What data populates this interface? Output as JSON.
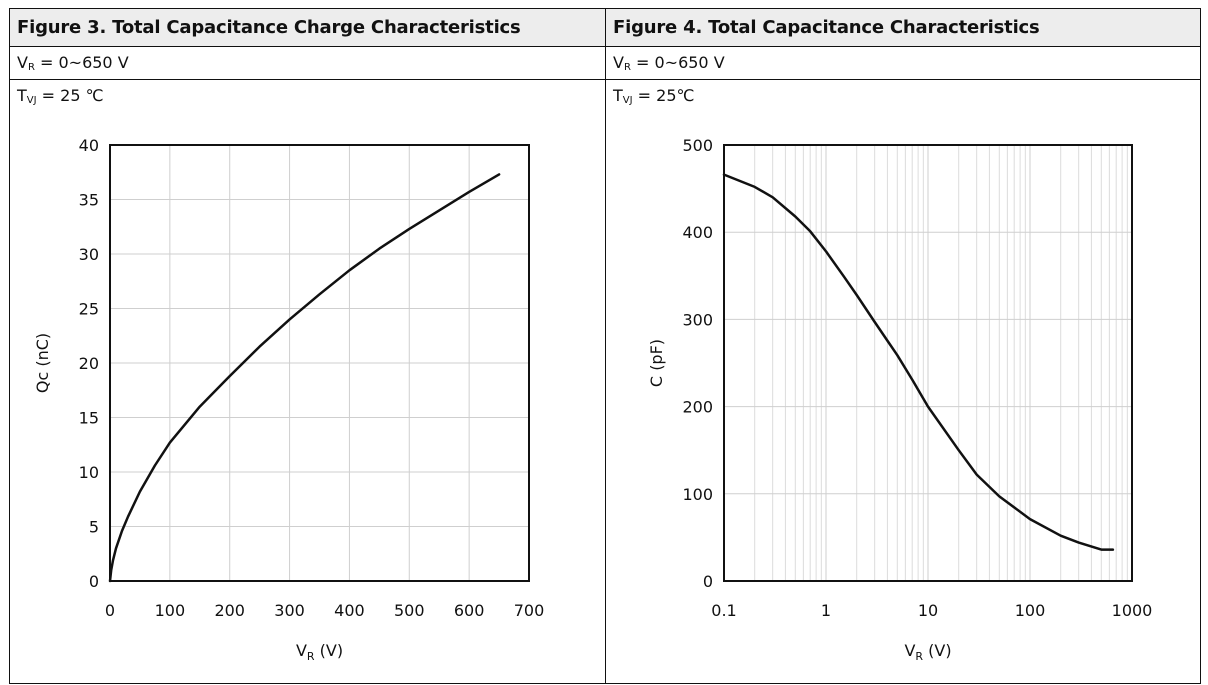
{
  "figures": [
    {
      "title": "Figure 3. Total Capacitance Charge Characteristics",
      "condition_symbol": "V",
      "condition_sub": "R",
      "condition_value": " = 0~650 V",
      "temp_symbol": "T",
      "temp_sub": "VJ",
      "temp_value": " = 25 ℃"
    },
    {
      "title": "Figure 4. Total Capacitance Characteristics",
      "condition_symbol": "V",
      "condition_sub": "R",
      "condition_value": " = 0~650 V",
      "temp_symbol": "T",
      "temp_sub": "VJ",
      "temp_value": " = 25℃"
    }
  ],
  "chart_data": [
    {
      "type": "line",
      "xlabel": "V",
      "xlabel_sub": "R",
      "xlabel_unit": " (V)",
      "ylabel": "Qc (nC)",
      "xlim": [
        0,
        700
      ],
      "ylim": [
        0,
        40
      ],
      "xticks": [
        0,
        100,
        200,
        300,
        400,
        500,
        600,
        700
      ],
      "yticks": [
        0,
        5,
        10,
        15,
        20,
        25,
        30,
        35,
        40
      ],
      "x_scale": "linear",
      "grid": true,
      "series": [
        {
          "x": [
            0,
            2,
            5,
            10,
            20,
            30,
            50,
            75,
            100,
            150,
            200,
            250,
            300,
            350,
            400,
            450,
            500,
            550,
            600,
            650
          ],
          "y": [
            0,
            1.0,
            1.9,
            3.0,
            4.6,
            5.9,
            8.2,
            10.6,
            12.7,
            16.0,
            18.8,
            21.5,
            24.0,
            26.3,
            28.5,
            30.5,
            32.3,
            34.0,
            35.7,
            37.3
          ]
        }
      ]
    },
    {
      "type": "line",
      "xlabel": "V",
      "xlabel_sub": "R",
      "xlabel_unit": " (V)",
      "ylabel": "C (pF)",
      "xlim": [
        0.1,
        1000
      ],
      "ylim": [
        0,
        500
      ],
      "xticks": [
        0.1,
        1,
        10,
        100,
        1000
      ],
      "xtick_labels": [
        "0.1",
        "1",
        "10",
        "100",
        "1000"
      ],
      "yticks": [
        0,
        100,
        200,
        300,
        400,
        500
      ],
      "x_scale": "log",
      "grid": true,
      "series": [
        {
          "x": [
            0.1,
            0.2,
            0.3,
            0.5,
            0.7,
            1,
            1.5,
            2,
            3,
            5,
            7,
            10,
            20,
            30,
            50,
            100,
            200,
            300,
            500,
            650
          ],
          "y": [
            466,
            452,
            440,
            418,
            401,
            378,
            349,
            328,
            297,
            259,
            231,
            200,
            150,
            122,
            97,
            71,
            52,
            44,
            36,
            36
          ]
        }
      ]
    }
  ]
}
